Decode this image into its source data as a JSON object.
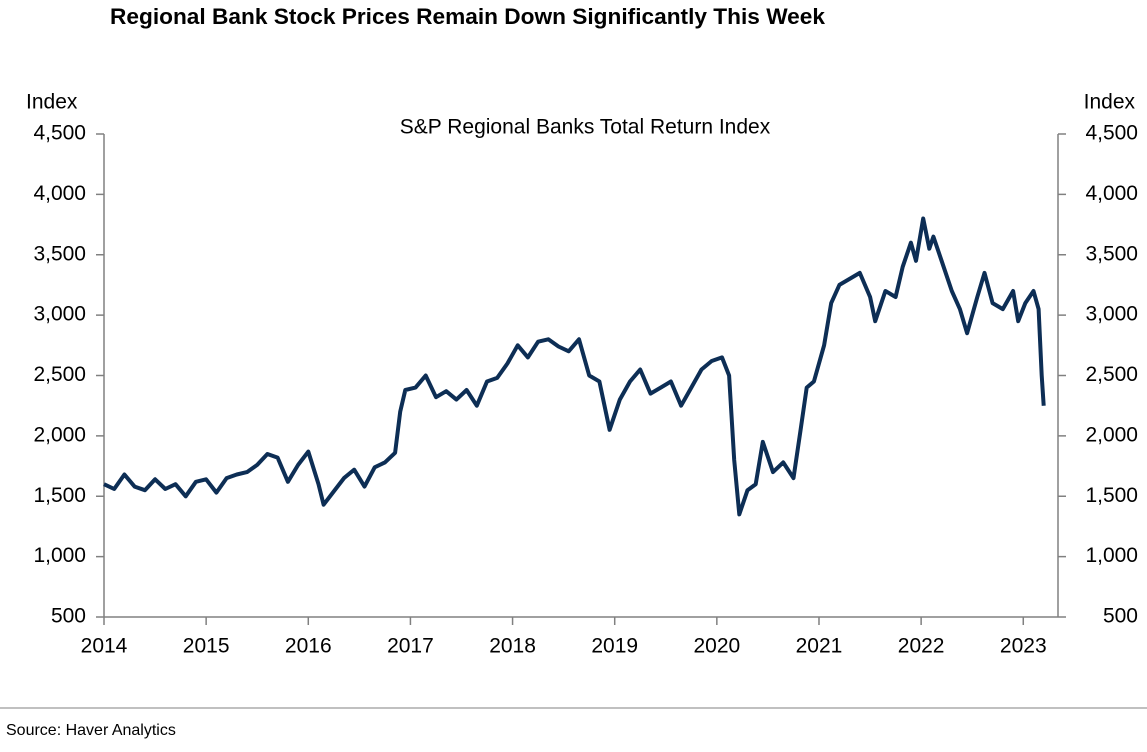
{
  "chart_data": {
    "type": "line",
    "title": "Regional Bank Stock Prices Remain Down Significantly This Week",
    "subtitle": "S&P Regional Banks Total Return Index",
    "ylabel": "Index",
    "y2label": "Index",
    "source": "Source: Haver Analytics",
    "xlim": [
      2014,
      2023.34
    ],
    "xticks": [
      2014,
      2015,
      2016,
      2017,
      2018,
      2019,
      2020,
      2021,
      2022,
      2023
    ],
    "ylim": [
      500,
      4500
    ],
    "yticks": [
      500,
      {
        "value": 1000,
        "label": "1,000"
      },
      {
        "value": 1500,
        "label": "1,500"
      },
      {
        "value": 2000,
        "label": "2,000"
      },
      {
        "value": 2500,
        "label": "2,500"
      },
      {
        "value": 3000,
        "label": "3,000"
      },
      {
        "value": 3500,
        "label": "3,500"
      },
      {
        "value": 4000,
        "label": "4,000"
      },
      {
        "value": 4500,
        "label": "4,500"
      }
    ],
    "y2lim": [
      500,
      4500
    ],
    "y2ticks": [
      500,
      {
        "value": 1000,
        "label": "1,000"
      },
      {
        "value": 1500,
        "label": "1,500"
      },
      {
        "value": 2000,
        "label": "2,000"
      },
      {
        "value": 2500,
        "label": "2,500"
      },
      {
        "value": 3000,
        "label": "3,000"
      },
      {
        "value": 3500,
        "label": "3,500"
      },
      {
        "value": 4000,
        "label": "4,000"
      },
      {
        "value": 4500,
        "label": "4,500"
      }
    ],
    "grid": false,
    "color": "#0d2e55",
    "x": [
      2014.0,
      2014.1,
      2014.2,
      2014.3,
      2014.4,
      2014.5,
      2014.6,
      2014.7,
      2014.8,
      2014.9,
      2015.0,
      2015.1,
      2015.2,
      2015.3,
      2015.4,
      2015.5,
      2015.6,
      2015.7,
      2015.8,
      2015.9,
      2016.0,
      2016.1,
      2016.15,
      2016.25,
      2016.35,
      2016.45,
      2016.55,
      2016.65,
      2016.75,
      2016.85,
      2016.9,
      2016.95,
      2017.05,
      2017.15,
      2017.25,
      2017.35,
      2017.45,
      2017.55,
      2017.65,
      2017.75,
      2017.85,
      2017.95,
      2018.05,
      2018.15,
      2018.25,
      2018.35,
      2018.45,
      2018.55,
      2018.65,
      2018.75,
      2018.85,
      2018.95,
      2019.05,
      2019.15,
      2019.25,
      2019.35,
      2019.45,
      2019.55,
      2019.65,
      2019.75,
      2019.85,
      2019.95,
      2020.05,
      2020.12,
      2020.17,
      2020.22,
      2020.3,
      2020.38,
      2020.45,
      2020.55,
      2020.65,
      2020.75,
      2020.82,
      2020.88,
      2020.95,
      2021.05,
      2021.12,
      2021.2,
      2021.3,
      2021.4,
      2021.5,
      2021.55,
      2021.65,
      2021.75,
      2021.82,
      2021.9,
      2021.95,
      2022.02,
      2022.08,
      2022.12,
      2022.2,
      2022.3,
      2022.38,
      2022.45,
      2022.55,
      2022.62,
      2022.7,
      2022.8,
      2022.9,
      2022.95,
      2023.02,
      2023.1,
      2023.15,
      2023.18,
      2023.2
    ],
    "values": [
      1600,
      1560,
      1680,
      1580,
      1550,
      1640,
      1560,
      1600,
      1500,
      1620,
      1640,
      1530,
      1650,
      1680,
      1700,
      1760,
      1850,
      1820,
      1620,
      1760,
      1870,
      1600,
      1430,
      1540,
      1650,
      1720,
      1580,
      1740,
      1780,
      1860,
      2200,
      2380,
      2400,
      2500,
      2320,
      2370,
      2300,
      2380,
      2250,
      2450,
      2480,
      2600,
      2750,
      2650,
      2780,
      2800,
      2740,
      2700,
      2800,
      2500,
      2450,
      2050,
      2300,
      2450,
      2550,
      2350,
      2400,
      2450,
      2250,
      2400,
      2550,
      2620,
      2650,
      2500,
      1800,
      1350,
      1550,
      1600,
      1950,
      1700,
      1780,
      1650,
      2050,
      2400,
      2450,
      2750,
      3100,
      3250,
      3300,
      3350,
      3150,
      2950,
      3200,
      3150,
      3400,
      3600,
      3450,
      3800,
      3550,
      3650,
      3450,
      3200,
      3050,
      2850,
      3150,
      3350,
      3100,
      3050,
      3200,
      2950,
      3100,
      3200,
      3050,
      2500,
      2250
    ]
  }
}
